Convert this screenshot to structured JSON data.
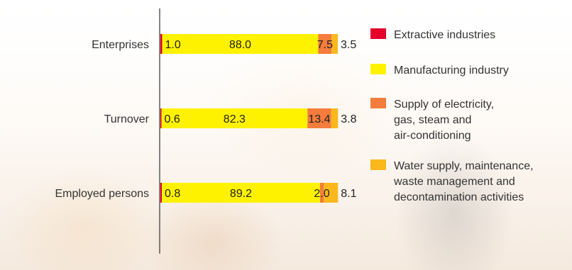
{
  "chart_data": {
    "type": "bar",
    "orientation": "horizontal",
    "stacked": true,
    "categories": [
      "Enterprises",
      "Turnover",
      "Employed persons"
    ],
    "series": [
      {
        "name": "Extractive industries",
        "values": [
          1.0,
          0.6,
          0.8
        ],
        "color": "#e4002b"
      },
      {
        "name": "Manufacturing industry",
        "values": [
          88.0,
          82.3,
          89.2
        ],
        "color": "#fff200"
      },
      {
        "name": "Supply of electricity, gas, steam and air-conditioning",
        "values": [
          7.5,
          13.4,
          2.0
        ],
        "color": "#f47c3c"
      },
      {
        "name": "Water supply, maintenance, waste management and decontamination activities",
        "values": [
          3.5,
          3.8,
          8.1
        ],
        "color": "#fbb81d"
      }
    ],
    "value_labels": [
      [
        "1.0",
        "88.0",
        "7.5",
        "3.5"
      ],
      [
        "0.6",
        "82.3",
        "13.4",
        "3.8"
      ],
      [
        "0.8",
        "89.2",
        "2.0",
        "8.1"
      ]
    ],
    "legend_lines": [
      [
        "Extractive industries"
      ],
      [
        "Manufacturing industry"
      ],
      [
        "Supply of electricity,",
        "gas, steam and",
        "air-conditioning"
      ],
      [
        "Water supply, maintenance,",
        "waste management and",
        "decontamination activities"
      ]
    ],
    "xlim": [
      0,
      100
    ],
    "legend_position": "right",
    "grid": false
  }
}
